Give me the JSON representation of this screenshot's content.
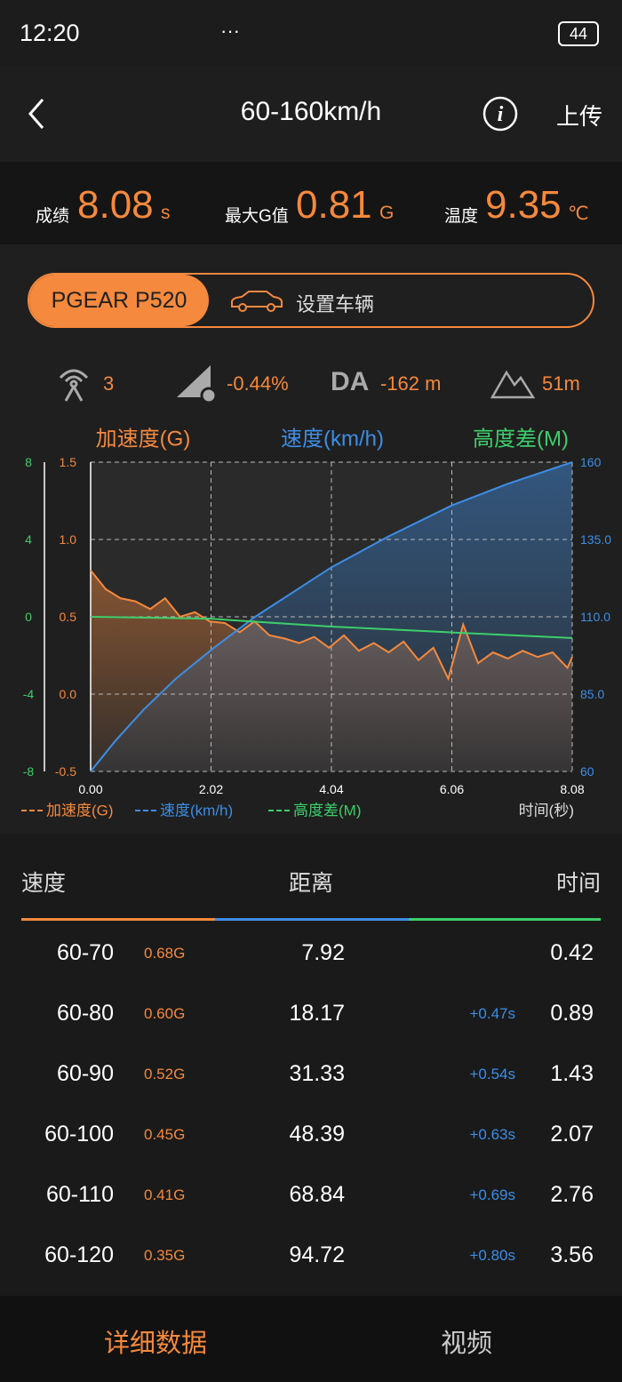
{
  "status_bar": {
    "time": "12:20",
    "more": "···",
    "battery": "44"
  },
  "header": {
    "title": "60-160km/h",
    "upload": "上传"
  },
  "stats": {
    "score_label": "成绩",
    "score": "8.08",
    "score_unit": "s",
    "maxg_label": "最大G值",
    "maxg": "0.81",
    "maxg_unit": "G",
    "temp_label": "温度",
    "temp": "9.35",
    "temp_unit": "℃"
  },
  "vehicle": {
    "name": "PGEAR P520",
    "set": "设置车辆"
  },
  "conditions": {
    "satellites": "3",
    "slope": "-0.44%",
    "da_label": "DA",
    "da": "-162 m",
    "altitude": "51m"
  },
  "chart": {
    "type": "line",
    "x_label": "时间(秒)",
    "xlim": [
      0,
      8.08
    ],
    "xticks": [
      {
        "value": 0,
        "label": "0.00"
      },
      2.02,
      4.04,
      6.06,
      8.08
    ],
    "ylim": [
      -0.5,
      1.5
    ],
    "yticks": [
      -0.5,
      {
        "value": 0,
        "label": "0.0"
      },
      0.5,
      {
        "value": 1,
        "label": "1.0"
      },
      1.5
    ],
    "y2lim": [
      60,
      160
    ],
    "y2ticks": [
      60,
      {
        "value": 85,
        "label": "85.0"
      },
      {
        "value": 110,
        "label": "110.0"
      },
      {
        "value": 135,
        "label": "135.0"
      },
      160
    ],
    "y3lim": [
      -8,
      8
    ],
    "y3ticks": [
      -8,
      -4,
      0,
      4,
      8
    ],
    "grid": true,
    "series": [
      {
        "name": "加速度(G)",
        "color": "#f5893d",
        "axis": "y",
        "x": [
          0,
          0.25,
          0.5,
          0.75,
          1,
          1.25,
          1.5,
          1.75,
          2,
          2.25,
          2.5,
          2.75,
          3,
          3.25,
          3.5,
          3.75,
          4,
          4.25,
          4.5,
          4.75,
          5,
          5.25,
          5.5,
          5.75,
          6,
          6.25,
          6.5,
          6.75,
          7,
          7.25,
          7.5,
          7.75,
          8,
          8.08
        ],
        "values": [
          0.8,
          0.68,
          0.62,
          0.6,
          0.55,
          0.62,
          0.5,
          0.53,
          0.47,
          0.46,
          0.4,
          0.47,
          0.38,
          0.36,
          0.33,
          0.37,
          0.3,
          0.38,
          0.28,
          0.33,
          0.27,
          0.34,
          0.22,
          0.3,
          0.1,
          0.45,
          0.2,
          0.27,
          0.23,
          0.28,
          0.24,
          0.27,
          0.17,
          0.24
        ]
      },
      {
        "name": "速度(km/h)",
        "color": "#3d8ee6",
        "axis": "y2",
        "x": [
          0,
          0.42,
          0.89,
          1.43,
          2.07,
          2.76,
          3.56,
          4.04,
          5,
          6.06,
          7,
          8.08
        ],
        "values": [
          60,
          70,
          80,
          90,
          100,
          110,
          120,
          126,
          136,
          146,
          153,
          160
        ]
      },
      {
        "name": "高度差(M)",
        "color": "#3ccf6a",
        "axis": "y3",
        "x": [
          0,
          2,
          4,
          6,
          8.08
        ],
        "values": [
          0,
          -0.1,
          -0.5,
          -0.8,
          -1.1
        ]
      }
    ]
  },
  "table": {
    "headers": [
      "速度",
      "距离",
      "时间"
    ],
    "rows": [
      {
        "speed": "60-70",
        "g": "0.68G",
        "distance": "7.92",
        "time": "0.42"
      },
      {
        "speed": "60-80",
        "g": "0.60G",
        "distance": "18.17",
        "delta": "+0.47s",
        "time": "0.89"
      },
      {
        "speed": "60-90",
        "g": "0.52G",
        "distance": "31.33",
        "delta": "+0.54s",
        "time": "1.43"
      },
      {
        "speed": "60-100",
        "g": "0.45G",
        "distance": "48.39",
        "delta": "+0.63s",
        "time": "2.07"
      },
      {
        "speed": "60-110",
        "g": "0.41G",
        "distance": "68.84",
        "delta": "+0.69s",
        "time": "2.76"
      },
      {
        "speed": "60-120",
        "g": "0.35G",
        "distance": "94.72",
        "delta": "+0.80s",
        "time": "3.56"
      }
    ]
  },
  "bottom_nav": {
    "details": "详细数据",
    "video": "视频"
  }
}
